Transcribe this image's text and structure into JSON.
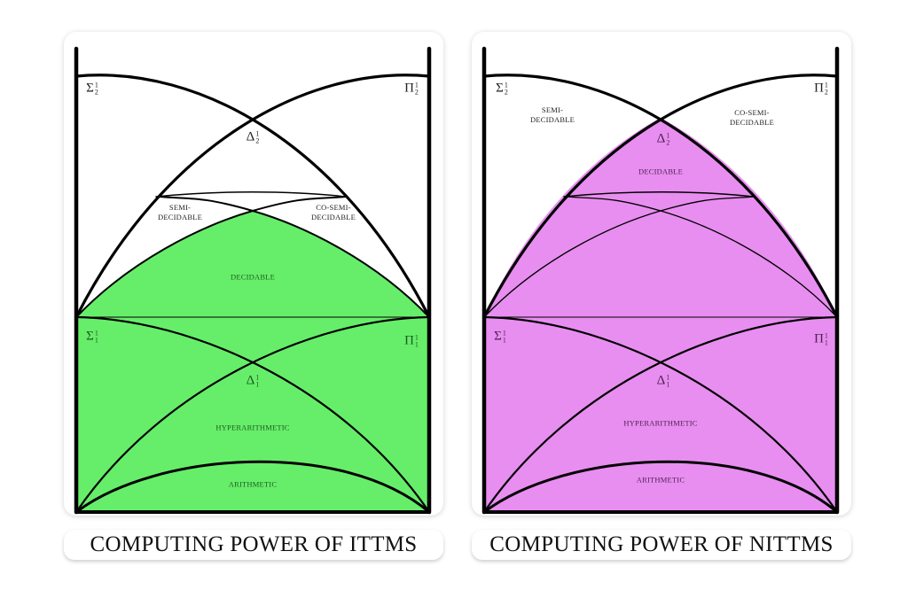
{
  "colors": {
    "itm_fill": "#66ee6a",
    "nitm_fill": "#e88ef0",
    "line": "#000000"
  },
  "panels": [
    {
      "id": "ittms",
      "caption": "COMPUTING POWER OF ITTMS",
      "fill_region": "decidable-and-below",
      "fill_color": "#66ee6a",
      "text_color": "#1e5a1f",
      "labels": {
        "sigma2": {
          "symbol": "Σ",
          "sup": "1",
          "sub": "2"
        },
        "pi2": {
          "symbol": "Π",
          "sup": "1",
          "sub": "2"
        },
        "delta2": {
          "symbol": "Δ",
          "sup": "1",
          "sub": "2"
        },
        "semi": [
          "SEMI-",
          "DECIDABLE"
        ],
        "cosemi": [
          "CO-SEMI-",
          "DECIDABLE"
        ],
        "decidable": "DECIDABLE",
        "sigma1": {
          "symbol": "Σ",
          "sup": "1",
          "sub": "1"
        },
        "pi1": {
          "symbol": "Π",
          "sup": "1",
          "sub": "1"
        },
        "delta1": {
          "symbol": "Δ",
          "sup": "1",
          "sub": "1"
        },
        "hyper": "HYPERARITHMETIC",
        "arith": "ARITHMETIC"
      }
    },
    {
      "id": "nittms",
      "caption": "COMPUTING POWER OF NITTMS",
      "fill_region": "delta2-and-below",
      "fill_color": "#e88ef0",
      "text_color": "#4a1f50",
      "labels": {
        "sigma2": {
          "symbol": "Σ",
          "sup": "1",
          "sub": "2"
        },
        "pi2": {
          "symbol": "Π",
          "sup": "1",
          "sub": "2"
        },
        "delta2": {
          "symbol": "Δ",
          "sup": "1",
          "sub": "2"
        },
        "semi": [
          "SEMI-",
          "DECIDABLE"
        ],
        "cosemi": [
          "CO-SEMI-",
          "DECIDABLE"
        ],
        "decidable": "DECIDABLE",
        "sigma1": {
          "symbol": "Σ",
          "sup": "1",
          "sub": "1"
        },
        "pi1": {
          "symbol": "Π",
          "sup": "1",
          "sub": "1"
        },
        "delta1": {
          "symbol": "Δ",
          "sup": "1",
          "sub": "1"
        },
        "hyper": "HYPERARITHMETIC",
        "arith": "ARITHMETIC"
      }
    }
  ]
}
